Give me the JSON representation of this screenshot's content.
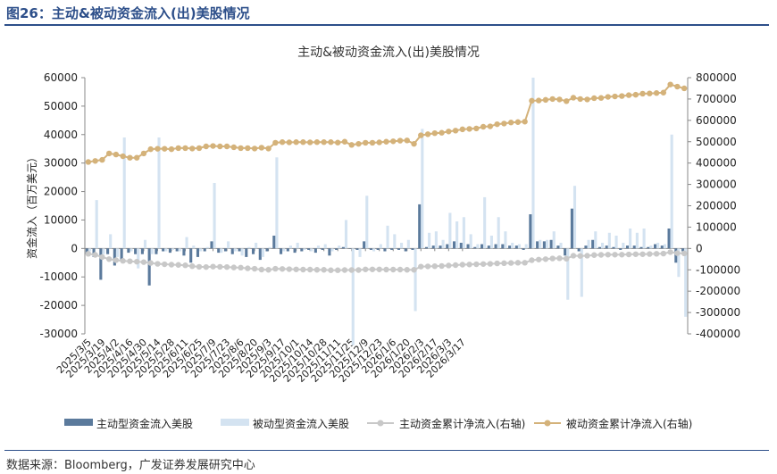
{
  "figure": {
    "caption": "图26：主动&被动资金流入(出)美股情况",
    "source": "数据来源：Bloomberg，广发证券发展研究中心"
  },
  "colors": {
    "active_bar": "#5b7a9c",
    "passive_bar": "#d4e3f1",
    "active_cum": "#c8c8c8",
    "passive_cum": "#d4b27a",
    "accent": "#2d4f8a"
  },
  "chart_data": {
    "type": "bar",
    "title": "主动&被动资金流入(出)美股情况",
    "ylabel": "资金流入（百万美元）",
    "y2label": "",
    "ylim": [
      -30000,
      60000
    ],
    "y2lim": [
      -400000,
      800000
    ],
    "yticks": [
      "60000",
      "50000",
      "40000",
      "30000",
      "20000",
      "10000",
      "0",
      "-10000",
      "-20000",
      "-30000"
    ],
    "y2ticks": [
      "800000",
      "700000",
      "600000",
      "500000",
      "400000",
      "300000",
      "200000",
      "100000",
      "0",
      "-100000",
      "-200000",
      "-300000",
      "-400000"
    ],
    "x_tick_labels": [
      "2025/3/5",
      "2025/3/19",
      "2025/4/2",
      "2025/4/16",
      "2025/4/30",
      "2025/5/14",
      "2025/5/28",
      "2025/6/11",
      "2025/6/25",
      "2025/7/9",
      "2025/7/23",
      "2025/8/6",
      "2025/8/20",
      "2025/9/3",
      "2025/9/17",
      "2025/10/1",
      "2025/10/14",
      "2025/10/28",
      "2025/11/11",
      "2025/11/25",
      "2025/12/9",
      "2025/12/23",
      "2026/1/6",
      "2026/1/20",
      "2026/2/3",
      "2026/2/17",
      "2026/3/3",
      "2026/3/17"
    ],
    "legend": [
      "主动型资金流入美股",
      "被动型资金流入美股",
      "主动资金累计净流入(右轴)",
      "被动资金累计净流入(右轴)"
    ],
    "legend_position": "bottom",
    "grid": false,
    "series": [
      {
        "name": "主动型资金流入美股",
        "type": "bar",
        "axis": "left",
        "values": [
          -2000,
          -3000,
          -11000,
          -2000,
          -6000,
          -4000,
          -1500,
          -2000,
          -2000,
          -13000,
          -2000,
          -1000,
          -1500,
          -1000,
          -2500,
          -5000,
          -3000,
          -1000,
          2500,
          -1500,
          -1000,
          -2000,
          -1000,
          -3000,
          -2000,
          -4000,
          -1000,
          4500,
          -2000,
          -1000,
          -1500,
          -1000,
          -500,
          -1500,
          -500,
          -2500,
          -500,
          500,
          0,
          -500,
          2500,
          -500,
          -500,
          -1000,
          -500,
          -500,
          -1000,
          -500,
          15500,
          500,
          1000,
          1000,
          1500,
          2500,
          2000,
          1500,
          500,
          1500,
          1000,
          1500,
          1500,
          1000,
          1000,
          -500,
          12000,
          2500,
          2500,
          3000,
          1000,
          -2500,
          14000,
          -1000,
          1000,
          3000,
          500,
          1000,
          500,
          -500,
          1000,
          1000,
          500,
          500,
          1500,
          1000,
          7000,
          -5000,
          -1000
        ]
      },
      {
        "name": "被动型资金流入美股",
        "type": "bar",
        "axis": "left",
        "values": [
          -1000,
          17000,
          -2000,
          5000,
          -3000,
          39000,
          -1000,
          -7000,
          3000,
          -2000,
          39000,
          -1000,
          -500,
          -1000,
          4000,
          1000,
          -1000,
          500,
          23000,
          -1500,
          2500,
          -1000,
          -2500,
          500,
          2000,
          -3000,
          500,
          32000,
          -1000,
          1000,
          2000,
          -500,
          -1000,
          1000,
          1500,
          -1000,
          1000,
          10000,
          -34000,
          -3000,
          18500,
          -1000,
          1500,
          8000,
          5000,
          2000,
          3000,
          -22000,
          42000,
          5500,
          6000,
          3000,
          12500,
          9500,
          11000,
          5000,
          1500,
          18000,
          4500,
          11000,
          6000,
          2000,
          1500,
          1500,
          60000,
          3000,
          3000,
          6000,
          2000,
          -18000,
          22000,
          -17000,
          3000,
          6000,
          2000,
          5500,
          4500,
          2000,
          7000,
          5500,
          7000,
          1000,
          2000,
          1500,
          40000,
          -10000,
          -24000
        ]
      },
      {
        "name": "主动资金累计净流入(右轴)",
        "type": "line",
        "axis": "right",
        "values": [
          -25000,
          -30000,
          -40000,
          -50000,
          -55000,
          -58000,
          -60000,
          -62000,
          -64000,
          -68000,
          -72000,
          -74000,
          -76000,
          -77000,
          -79000,
          -83000,
          -86000,
          -87000,
          -85000,
          -86000,
          -87000,
          -89000,
          -90000,
          -93000,
          -95000,
          -99000,
          -100000,
          -95000,
          -96000,
          -97000,
          -98000,
          -99000,
          -99000,
          -100000,
          -100000,
          -102000,
          -102000,
          -101000,
          -101000,
          -101000,
          -98000,
          -98000,
          -98000,
          -99000,
          -99000,
          -99000,
          -100000,
          -100000,
          -85000,
          -84000,
          -83000,
          -82000,
          -80000,
          -78000,
          -76000,
          -75000,
          -74000,
          -73000,
          -72000,
          -70000,
          -69000,
          -68000,
          -67000,
          -67000,
          -55000,
          -52000,
          -50000,
          -47000,
          -46000,
          -48000,
          -34000,
          -35000,
          -34000,
          -31000,
          -30000,
          -29000,
          -29000,
          -29000,
          -28000,
          -27000,
          -27000,
          -26000,
          -25000,
          -24000,
          -17000,
          -22000,
          -23000
        ]
      },
      {
        "name": "被动资金累计净流入(右轴)",
        "type": "line",
        "axis": "right",
        "values": [
          405000,
          410000,
          415000,
          445000,
          440000,
          432000,
          425000,
          425000,
          445000,
          465000,
          467000,
          467000,
          465000,
          470000,
          470000,
          468000,
          470000,
          478000,
          480000,
          478000,
          478000,
          474000,
          470000,
          470000,
          468000,
          472000,
          468000,
          495000,
          498000,
          497000,
          498000,
          498000,
          497000,
          498000,
          498000,
          498000,
          496000,
          500000,
          485000,
          490000,
          495000,
          495000,
          497000,
          500000,
          502000,
          505000,
          506000,
          490000,
          530000,
          535000,
          540000,
          542000,
          548000,
          552000,
          558000,
          560000,
          562000,
          570000,
          572000,
          582000,
          585000,
          590000,
          592000,
          594000,
          692000,
          693000,
          696000,
          700000,
          698000,
          690000,
          706000,
          700000,
          698000,
          704000,
          705000,
          710000,
          712000,
          714000,
          718000,
          720000,
          725000,
          726000,
          728000,
          730000,
          768000,
          758000,
          750000
        ]
      }
    ]
  }
}
